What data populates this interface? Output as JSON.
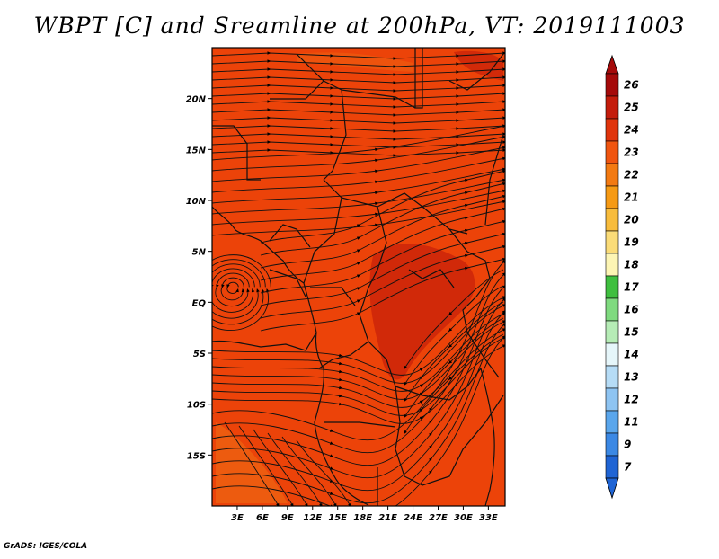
{
  "title": "WBPT [C] and Sreamline at 200hPa, VT: 2019111003",
  "credit": "GrADS: IGES/COLA",
  "map": {
    "lon_range": [
      0,
      35
    ],
    "lat_range": [
      -20,
      25
    ],
    "lat_ticks": [
      {
        "lat": 20,
        "label": "20N"
      },
      {
        "lat": 15,
        "label": "15N"
      },
      {
        "lat": 10,
        "label": "10N"
      },
      {
        "lat": 5,
        "label": "5N"
      },
      {
        "lat": 0,
        "label": "EQ"
      },
      {
        "lat": -5,
        "label": "5S"
      },
      {
        "lat": -10,
        "label": "10S"
      },
      {
        "lat": -15,
        "label": "15S"
      }
    ],
    "lon_ticks": [
      {
        "lon": 3,
        "label": "3E"
      },
      {
        "lon": 6,
        "label": "6E"
      },
      {
        "lon": 9,
        "label": "9E"
      },
      {
        "lon": 12,
        "label": "12E"
      },
      {
        "lon": 15,
        "label": "15E"
      },
      {
        "lon": 18,
        "label": "18E"
      },
      {
        "lon": 21,
        "label": "21E"
      },
      {
        "lon": 24,
        "label": "24E"
      },
      {
        "lon": 27,
        "label": "27E"
      },
      {
        "lon": 30,
        "label": "30E"
      },
      {
        "lon": 33,
        "label": "33E"
      }
    ],
    "background_color": "#f0490a",
    "dominant_value_color": "#e63a08",
    "max_region_color": "#c8200a"
  },
  "colorbar": {
    "levels": [
      {
        "label": "26",
        "color": "#a50a0a"
      },
      {
        "label": "25",
        "color": "#c41c0c"
      },
      {
        "label": "24",
        "color": "#e0340c"
      },
      {
        "label": "23",
        "color": "#f05510"
      },
      {
        "label": "22",
        "color": "#f37a12"
      },
      {
        "label": "21",
        "color": "#f69a14"
      },
      {
        "label": "20",
        "color": "#f8bc3c"
      },
      {
        "label": "19",
        "color": "#fbdc78"
      },
      {
        "label": "18",
        "color": "#fdf5b4"
      },
      {
        "label": "17",
        "color": "#3fbf3f"
      },
      {
        "label": "16",
        "color": "#7fda7f"
      },
      {
        "label": "15",
        "color": "#b6ecb6"
      },
      {
        "label": "14",
        "color": "#e6f6fa"
      },
      {
        "label": "13",
        "color": "#b6dcf6"
      },
      {
        "label": "12",
        "color": "#8ec4f2"
      },
      {
        "label": "11",
        "color": "#5aa6ec"
      },
      {
        "label": "9",
        "color": "#3b88e4"
      },
      {
        "label": "7",
        "color": "#1f64d4"
      }
    ]
  }
}
